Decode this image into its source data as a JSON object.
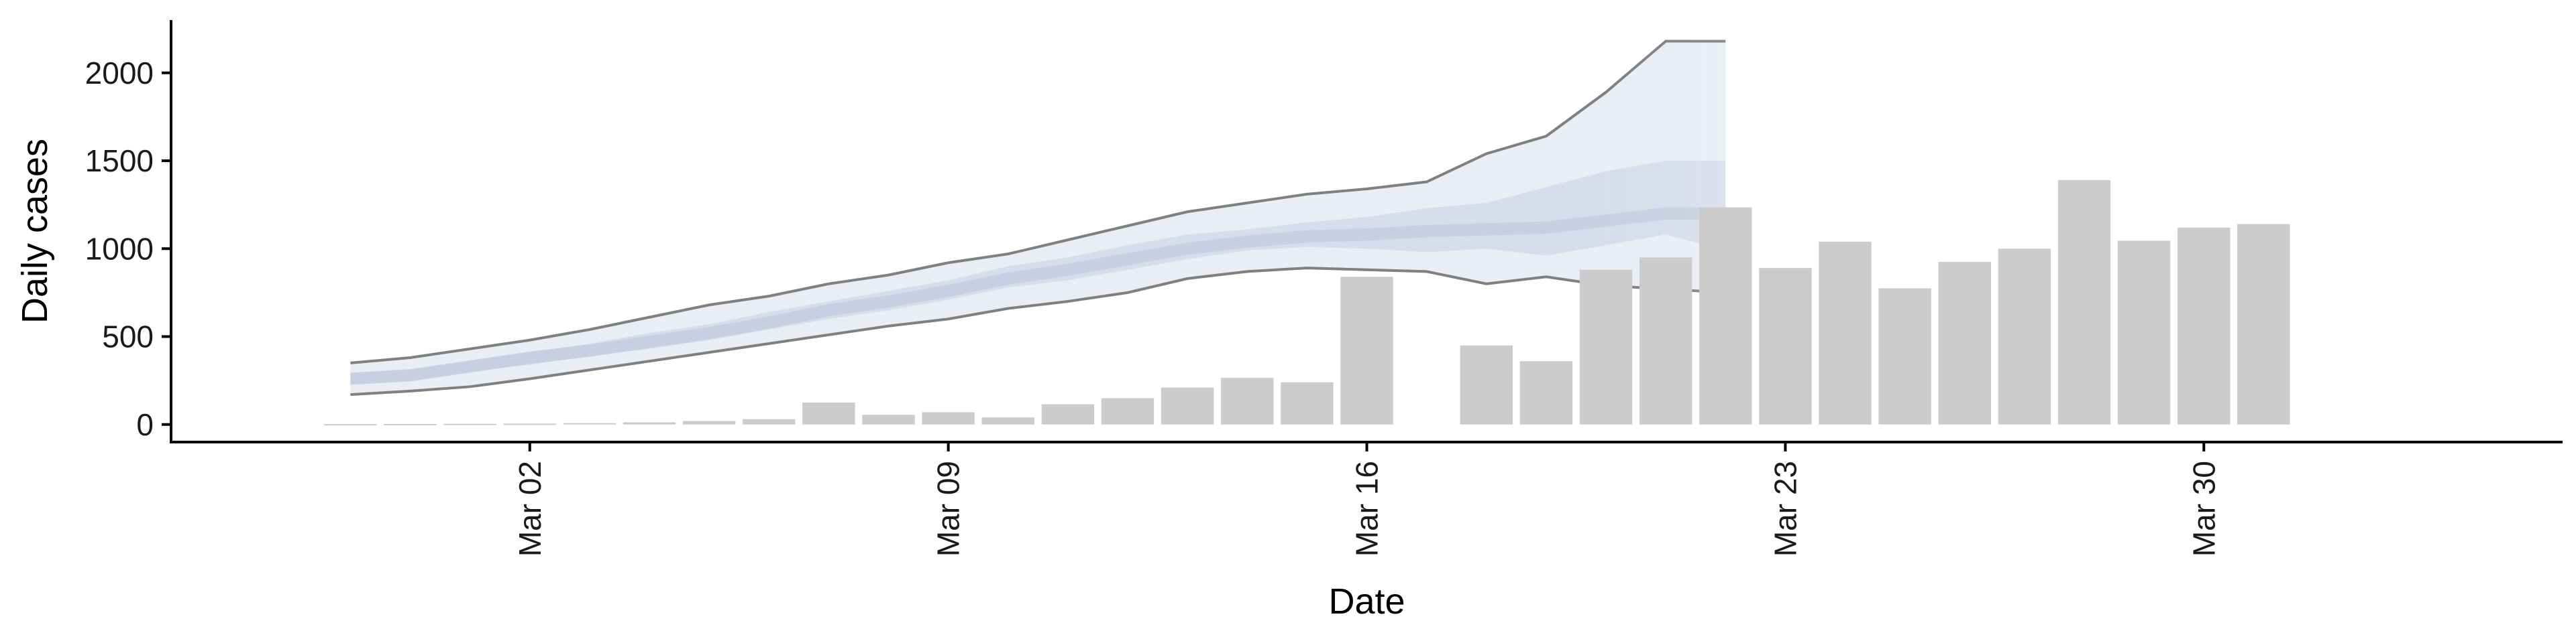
{
  "chart_data": {
    "type": "bar",
    "title": "",
    "xlabel": "Date",
    "ylabel": "Daily cases",
    "ylim": [
      -100,
      2300
    ],
    "yticks": [
      0,
      500,
      1000,
      1500,
      2000
    ],
    "xticks": [
      {
        "date": "2020-03-02",
        "label": "Mar 02"
      },
      {
        "date": "2020-03-09",
        "label": "Mar 09"
      },
      {
        "date": "2020-03-16",
        "label": "Mar 16"
      },
      {
        "date": "2020-03-23",
        "label": "Mar 23"
      },
      {
        "date": "2020-03-30",
        "label": "Mar 30"
      }
    ],
    "xlim": [
      "2020-02-25",
      "2020-04-05"
    ],
    "grid": false,
    "legend": "none",
    "bars": {
      "color": "#cccccc",
      "points": [
        {
          "x": "2020-02-28",
          "y": 2
        },
        {
          "x": "2020-02-29",
          "y": 3
        },
        {
          "x": "2020-03-01",
          "y": 4
        },
        {
          "x": "2020-03-02",
          "y": 5
        },
        {
          "x": "2020-03-03",
          "y": 8
        },
        {
          "x": "2020-03-04",
          "y": 12
        },
        {
          "x": "2020-03-05",
          "y": 20
        },
        {
          "x": "2020-03-06",
          "y": 30
        },
        {
          "x": "2020-03-07",
          "y": 125
        },
        {
          "x": "2020-03-08",
          "y": 55
        },
        {
          "x": "2020-03-09",
          "y": 70
        },
        {
          "x": "2020-03-10",
          "y": 40
        },
        {
          "x": "2020-03-11",
          "y": 115
        },
        {
          "x": "2020-03-12",
          "y": 150
        },
        {
          "x": "2020-03-13",
          "y": 210
        },
        {
          "x": "2020-03-14",
          "y": 265
        },
        {
          "x": "2020-03-15",
          "y": 240
        },
        {
          "x": "2020-03-16",
          "y": 840
        },
        {
          "x": "2020-03-18",
          "y": 450
        },
        {
          "x": "2020-03-19",
          "y": 360
        },
        {
          "x": "2020-03-20",
          "y": 880
        },
        {
          "x": "2020-03-21",
          "y": 950
        },
        {
          "x": "2020-03-22",
          "y": 1235
        },
        {
          "x": "2020-03-23",
          "y": 890
        },
        {
          "x": "2020-03-24",
          "y": 1040
        },
        {
          "x": "2020-03-25",
          "y": 775
        },
        {
          "x": "2020-03-26",
          "y": 925
        },
        {
          "x": "2020-03-27",
          "y": 1000
        },
        {
          "x": "2020-03-28",
          "y": 1390
        },
        {
          "x": "2020-03-29",
          "y": 1045
        },
        {
          "x": "2020-03-30",
          "y": 1120
        },
        {
          "x": "2020-03-31",
          "y": 1140
        }
      ]
    },
    "estimate": {
      "dates": [
        "2020-02-28",
        "2020-02-29",
        "2020-03-01",
        "2020-03-02",
        "2020-03-03",
        "2020-03-04",
        "2020-03-05",
        "2020-03-06",
        "2020-03-07",
        "2020-03-08",
        "2020-03-09",
        "2020-03-10",
        "2020-03-11",
        "2020-03-12",
        "2020-03-13",
        "2020-03-14",
        "2020-03-15",
        "2020-03-16",
        "2020-03-17",
        "2020-03-18",
        "2020-03-19",
        "2020-03-20",
        "2020-03-21",
        "2020-03-22"
      ],
      "upper": [
        350,
        380,
        430,
        480,
        540,
        610,
        680,
        730,
        800,
        850,
        920,
        970,
        1050,
        1130,
        1210,
        1260,
        1310,
        1340,
        1380,
        1540,
        1640,
        1890,
        2180,
        2180
      ],
      "inner_upper": [
        290,
        310,
        360,
        410,
        460,
        520,
        570,
        640,
        700,
        760,
        820,
        900,
        950,
        1020,
        1080,
        1110,
        1150,
        1180,
        1230,
        1260,
        1350,
        1440,
        1500,
        1500
      ],
      "median": [
        260,
        280,
        330,
        380,
        420,
        470,
        520,
        580,
        650,
        700,
        760,
        830,
        880,
        940,
        1000,
        1040,
        1070,
        1080,
        1100,
        1110,
        1120,
        1160,
        1200,
        1200
      ],
      "inner_lower": [
        230,
        250,
        300,
        340,
        390,
        430,
        480,
        540,
        600,
        650,
        710,
        780,
        820,
        880,
        940,
        990,
        1010,
        1000,
        980,
        1000,
        960,
        1020,
        1080,
        990
      ],
      "lower": [
        170,
        190,
        215,
        260,
        310,
        360,
        410,
        460,
        510,
        560,
        600,
        660,
        700,
        750,
        830,
        870,
        890,
        880,
        870,
        800,
        840,
        790,
        770,
        750
      ],
      "band_color": "#dfe3ee",
      "inner_color": "#c2c9de",
      "line_color": "#808080"
    }
  }
}
